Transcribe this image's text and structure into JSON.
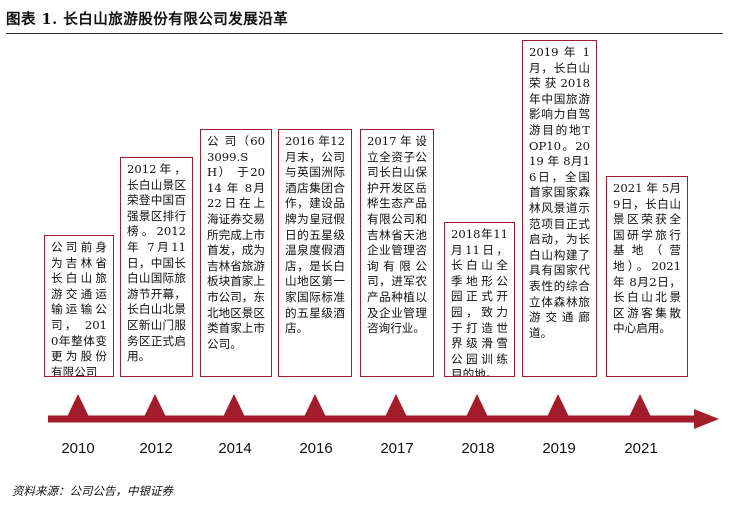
{
  "title": "图表 1. 长白山旅游股份有限公司发展沿革",
  "colors": {
    "accent": "#a31c2a"
  },
  "milestones": [
    {
      "year": "2010",
      "text": "公司前身为吉林省长白山旅游交通运输运输公司， 2010年整体变更为股份有限公司"
    },
    {
      "year": "2012",
      "text": "2012年，长白山景区荣登中国百强景区排行榜。2012 年 7月11日，中国长白山国际旅游节开幕，长白山北景区新山门服务区正式启用。"
    },
    {
      "year": "2014",
      "text": "公 司（603099.SH） 于2014 年 8月22日在上海证券交易所完成上市首发，成为吉林省旅游板块首家上市公司，东北地区景区类首家上市公司。"
    },
    {
      "year": "2016",
      "text": "2016 年12月末，公司与英国洲际酒店集团合作，建设品牌为皇冠假日的五星级温泉度假酒店，是长白山地区第一家国际标准的五星级酒店。"
    },
    {
      "year": "2017",
      "text": "2017年设立全资子公司长白山保护开发区岳桦生态产品有限公司和吉林省天池企业管理咨询有限公司，进军农产品种植以及企业管理咨询行业。"
    },
    {
      "year": "2018",
      "text": "2018年11月11日，长白山全季地形公园正式开园，致力于打造世界级滑雪公园训练目的地。"
    },
    {
      "year": "2019",
      "text": "2019 年 1月，长白山荣获2018年中国旅游影响力自驾游目的地TOP10。2019 年 8月16日，全国首家国家森林风景道示范项目正式启动，为长白山构建了具有国家代表性的综合立体森林旅游交通廊道。"
    },
    {
      "year": "2021",
      "text": "2021 年 5月9日，长白山景区荣获全国研学旅行基地（营地）。2021 年 8月2日，长白山北景区游客集散中心启用。"
    }
  ],
  "source": "资料来源：公司公告，中银证券"
}
